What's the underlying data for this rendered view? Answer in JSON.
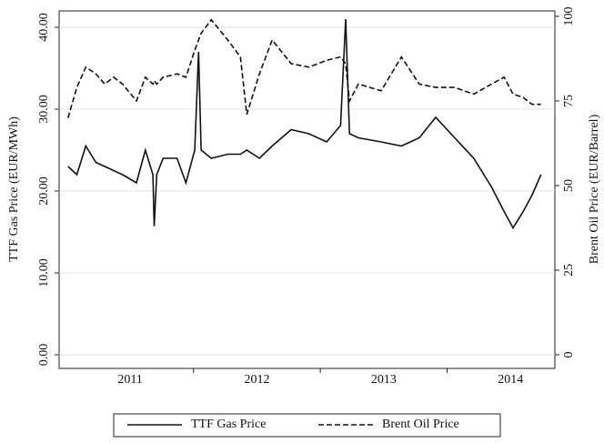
{
  "chart_data": {
    "type": "line",
    "y_label": "TTF Gas Price (EUR/MWh)",
    "y2_label": "Brent Oil Price (EUR/Barrel)",
    "x": [
      2011.01,
      2011.08,
      2011.15,
      2011.23,
      2011.3,
      2011.37,
      2011.44,
      2011.55,
      2011.62,
      2011.68,
      2011.69,
      2011.71,
      2011.76,
      2011.87,
      2011.94,
      2012.01,
      2012.04,
      2012.06,
      2012.14,
      2012.27,
      2012.37,
      2012.42,
      2012.52,
      2012.62,
      2012.77,
      2012.91,
      2013.05,
      2013.16,
      2013.2,
      2013.23,
      2013.3,
      2013.48,
      2013.64,
      2013.78,
      2013.91,
      2014.06,
      2014.21,
      2014.35,
      2014.45,
      2014.52,
      2014.6,
      2014.67,
      2014.74
    ],
    "series": [
      {
        "name": "TTF Gas Price",
        "color": "#111111",
        "dash": "solid",
        "axis": "y",
        "values": [
          23,
          22,
          25.5,
          23.5,
          23,
          22.5,
          22,
          21,
          25,
          22,
          15.7,
          22,
          24,
          24,
          21,
          25,
          37,
          25,
          24,
          24.5,
          24.5,
          25,
          24,
          25.5,
          27.5,
          27,
          26,
          28,
          41,
          27,
          26.5,
          26,
          25.5,
          26.5,
          29,
          26.5,
          24,
          20.5,
          17.5,
          15.5,
          17.5,
          19.5,
          22
        ]
      },
      {
        "name": "Brent Oil Price",
        "color": "#111111",
        "dash": "dashed",
        "axis": "y2",
        "values": [
          70,
          79,
          85,
          83,
          80,
          82,
          80,
          75,
          82,
          80,
          81,
          80,
          82,
          83,
          82,
          90,
          93,
          95,
          99,
          93,
          88,
          71,
          83,
          93,
          86,
          85,
          87,
          88,
          86,
          75,
          80,
          78,
          88,
          80,
          79,
          79,
          77,
          80,
          82,
          77,
          76,
          74,
          74
        ]
      }
    ],
    "xlim": [
      2010.94,
      2014.85
    ],
    "xticks": [
      {
        "value": 2011.5,
        "label": "2011"
      },
      {
        "value": 2012.5,
        "label": "2012"
      },
      {
        "value": 2013.5,
        "label": "2013"
      },
      {
        "value": 2014.5,
        "label": "2014"
      }
    ],
    "year_boundaries": [
      2012,
      2013,
      2014
    ],
    "ylim": [
      -1.67,
      42
    ],
    "yticks": [
      {
        "value": 0,
        "label": "0.00"
      },
      {
        "value": 10,
        "label": "10.00"
      },
      {
        "value": 20,
        "label": "20.00"
      },
      {
        "value": 30,
        "label": "30.00"
      },
      {
        "value": 40,
        "label": "40.00"
      }
    ],
    "y2lim": [
      -4.03,
      101.6
    ],
    "y2ticks": [
      0,
      25,
      50,
      75,
      100
    ],
    "grid": true
  }
}
